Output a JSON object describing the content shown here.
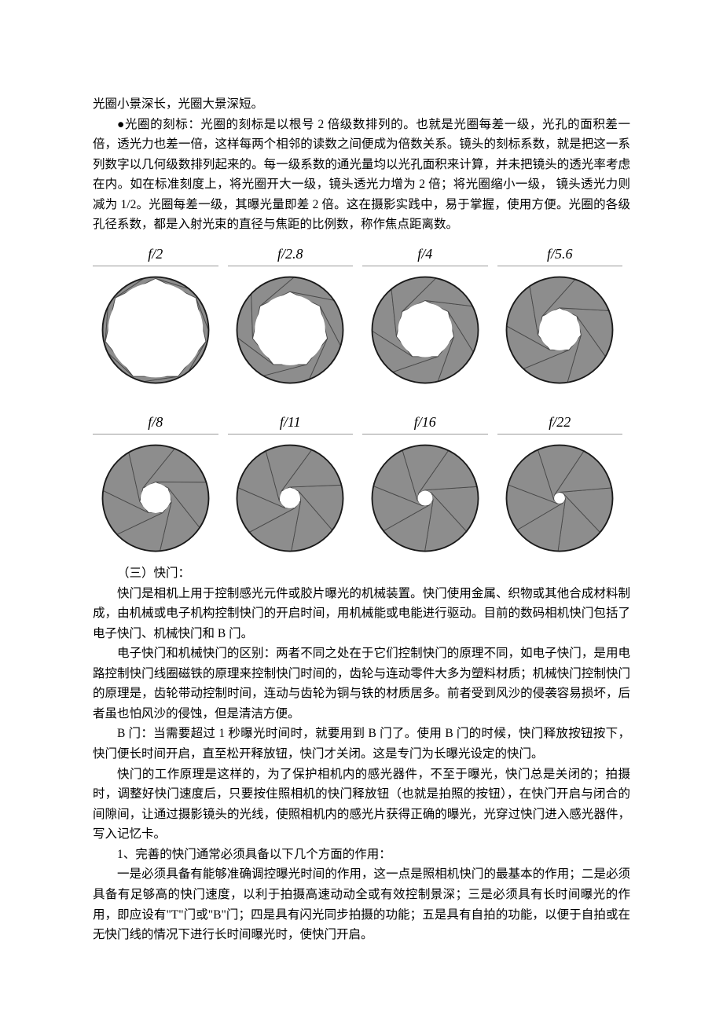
{
  "paragraphs": {
    "p1": "光圈小景深长，光圈大景深短。",
    "p2": "●光圈的刻标：光圈的刻标是以根号 2 倍级数排列的。也就是光圈每差一级，光孔的面积差一倍，透光力也差一倍，这样每两个相邻的读数之间便成为倍数关系。镜头的刻标系数，就是把这一系列数字以几何级数排列起来的。每一级系数的通光量均以光孔面积来计算，并未把镜头的透光率考虑在内。如在标准刻度上，将光圈开大一级，镜头透光力增为 2 倍；将光圈缩小一级， 镜头透光力则减为 1/2。光圈每差一级，其曝光量即差 2 倍。这在摄影实践中，易于掌握，使用方便。光圈的各级孔径系数，都是入射光束的直径与焦距的比例数，称作焦点距离数。",
    "h3": "（三）快门：",
    "p3": "快门是相机上用于控制感光元件或胶片曝光的机械装置。快门使用金属、织物或其他合成材料制成，由机械或电子机构控制快门的开启时间，用机械能或电能进行驱动。目前的数码相机快门包括了电子快门、机械快门和 B 门。",
    "p4": "电子快门和机械快门的区别：两者不同之处在于它们控制快门的原理不同，如电子快门，是用电路控制快门线圈磁铁的原理来控制快门时间的，齿轮与连动零件大多为塑料材质；机械快门控制快门的原理是，齿轮带动控制时间，连动与齿轮为铜与铁的材质居多。前者受到风沙的侵袭容易损坏，后者虽也怕风沙的侵蚀，但是清洁方便。",
    "p5": "B 门：当需要超过 1 秒曝光时间时，就要用到 B 门了。使用 B 门的时候，快门释放按钮按下，快门便长时间开启，直至松开释放钮，快门才关闭。这是专门为长曝光设定的快门。",
    "p6": "快门的工作原理是这样的，为了保护相机内的感光器件，不至于曝光，快门总是关闭的；拍摄时，调整好快门速度后，只要按住照相机的快门释放钮（也就是拍照的按钮），在快门开启与闭合的间隙间，让通过摄影镜头的光线，使照相机内的感光片获得正确的曝光，光穿过快门进入感光器件，写入记忆卡。",
    "p7": "1、完善的快门通常必须具备以下几个方面的作用：",
    "p8": "一是必须具备有能够准确调控曝光时间的作用，这一点是照相机快门的最基本的作用；二是必须具备有足够高的快门速度，以利于拍摄高速动动全或有效控制景深；三是必须具有长时间曝光的作用，即应设有\"T\"门或\"B\"门；四是具有闪光同步拍摄的功能；五是具有自拍的功能，以便于自拍或在无快门线的情况下进行长时间曝光时，使快门开启。"
  },
  "figure": {
    "labels": [
      "f/2",
      "f/2.8",
      "f/4",
      "f/5.6",
      "f/8",
      "f/11",
      "f/16",
      "f/22"
    ],
    "hole_radii": [
      70,
      52,
      40,
      30,
      22,
      15,
      11,
      8
    ],
    "outer_radius": 72,
    "blade_count": 7,
    "blade_fill": "#8d8d8d",
    "blade_stroke": "#4a4a4a",
    "outline_stroke": "#1a1a1a",
    "outline_width": 2,
    "bg": "#ffffff",
    "label_color": "#000000",
    "label_fontsize": 18
  }
}
